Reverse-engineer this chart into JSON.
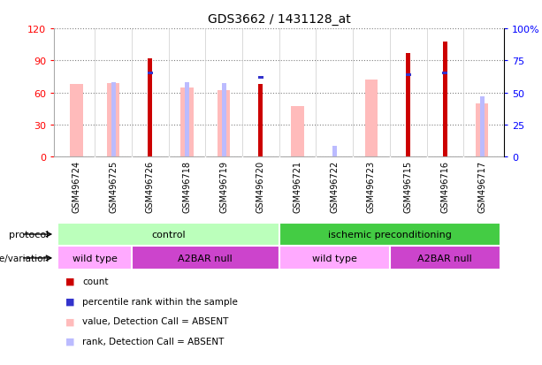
{
  "title": "GDS3662 / 1431128_at",
  "samples": [
    "GSM496724",
    "GSM496725",
    "GSM496726",
    "GSM496718",
    "GSM496719",
    "GSM496720",
    "GSM496721",
    "GSM496722",
    "GSM496723",
    "GSM496715",
    "GSM496716",
    "GSM496717"
  ],
  "count_values": [
    null,
    null,
    92,
    null,
    null,
    68,
    null,
    null,
    null,
    97,
    108,
    null
  ],
  "percentile_rank": [
    null,
    null,
    65,
    null,
    null,
    62,
    null,
    null,
    null,
    64,
    65,
    null
  ],
  "value_absent": [
    68,
    69,
    null,
    65,
    62,
    null,
    47,
    null,
    72,
    null,
    null,
    50
  ],
  "rank_absent": [
    null,
    58,
    null,
    58,
    57,
    null,
    null,
    8,
    null,
    null,
    null,
    47
  ],
  "ylim_left": [
    0,
    120
  ],
  "ylim_right": [
    0,
    100
  ],
  "yticks_left": [
    0,
    30,
    60,
    90,
    120
  ],
  "ytick_labels_left": [
    "0",
    "30",
    "60",
    "90",
    "120"
  ],
  "yticks_right": [
    0,
    25,
    50,
    75,
    100
  ],
  "ytick_labels_right": [
    "0",
    "25",
    "50",
    "75",
    "100%"
  ],
  "color_count": "#cc0000",
  "color_percentile": "#3333cc",
  "color_value_absent": "#ffbbbb",
  "color_rank_absent": "#bbbbff",
  "protocol_spans": [
    {
      "label": "control",
      "start": 0,
      "end": 5,
      "color": "#bbffbb"
    },
    {
      "label": "ischemic preconditioning",
      "start": 6,
      "end": 11,
      "color": "#44cc44"
    }
  ],
  "genotype_spans": [
    {
      "label": "wild type",
      "start": 0,
      "end": 1,
      "color": "#ffaaff"
    },
    {
      "label": "A2BAR null",
      "start": 2,
      "end": 5,
      "color": "#cc44cc"
    },
    {
      "label": "wild type",
      "start": 6,
      "end": 8,
      "color": "#ffaaff"
    },
    {
      "label": "A2BAR null",
      "start": 9,
      "end": 11,
      "color": "#cc44cc"
    }
  ]
}
